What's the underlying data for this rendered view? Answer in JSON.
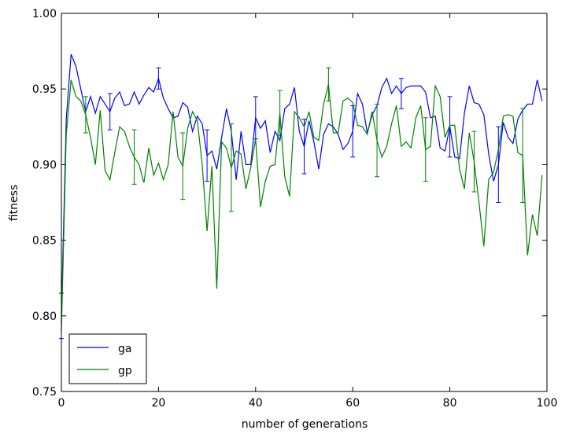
{
  "chart_data": {
    "type": "line",
    "xlabel": "number of generations",
    "ylabel": "fitness",
    "x": [
      0,
      1,
      2,
      3,
      4,
      5,
      6,
      7,
      8,
      9,
      10,
      11,
      12,
      13,
      14,
      15,
      16,
      17,
      18,
      19,
      20,
      21,
      22,
      23,
      24,
      25,
      26,
      27,
      28,
      29,
      30,
      31,
      32,
      33,
      34,
      35,
      36,
      37,
      38,
      39,
      40,
      41,
      42,
      43,
      44,
      45,
      46,
      47,
      48,
      49,
      50,
      51,
      52,
      53,
      54,
      55,
      56,
      57,
      58,
      59,
      60,
      61,
      62,
      63,
      64,
      65,
      66,
      67,
      68,
      69,
      70,
      71,
      72,
      73,
      74,
      75,
      76,
      77,
      78,
      79,
      80,
      81,
      82,
      83,
      84,
      85,
      86,
      87,
      88,
      89,
      90,
      91,
      92,
      93,
      94,
      95,
      96,
      97,
      98,
      99
    ],
    "xlim": [
      0,
      100
    ],
    "xticks": [
      0,
      20,
      40,
      60,
      80,
      100
    ],
    "ylim": [
      0.75,
      1.0
    ],
    "yticks": [
      0.75,
      {
        "value": 0.8,
        "label": "0.80"
      },
      0.85,
      {
        "value": 0.9,
        "label": "0.90"
      },
      0.95,
      {
        "value": 1.0,
        "label": "1.00"
      }
    ],
    "legend": "lower left",
    "series": [
      {
        "name": "ga",
        "color": "#0000ff",
        "values": [
          0.8,
          0.93,
          0.973,
          0.965,
          0.95,
          0.935,
          0.945,
          0.934,
          0.945,
          0.94,
          0.935,
          0.944,
          0.948,
          0.939,
          0.94,
          0.948,
          0.94,
          0.946,
          0.951,
          0.948,
          0.957,
          0.944,
          0.937,
          0.931,
          0.932,
          0.941,
          0.938,
          0.922,
          0.932,
          0.927,
          0.906,
          0.909,
          0.897,
          0.918,
          0.937,
          0.922,
          0.89,
          0.922,
          0.9,
          0.9,
          0.931,
          0.924,
          0.929,
          0.908,
          0.922,
          0.916,
          0.937,
          0.94,
          0.951,
          0.922,
          0.912,
          0.929,
          0.915,
          0.897,
          0.92,
          0.927,
          0.925,
          0.92,
          0.91,
          0.914,
          0.922,
          0.947,
          0.94,
          0.921,
          0.933,
          0.939,
          0.951,
          0.957,
          0.947,
          0.952,
          0.947,
          0.951,
          0.952,
          0.952,
          0.952,
          0.948,
          0.931,
          0.932,
          0.911,
          0.909,
          0.925,
          0.905,
          0.904,
          0.934,
          0.952,
          0.941,
          0.94,
          0.933,
          0.907,
          0.889,
          0.9,
          0.928,
          0.918,
          0.914,
          0.93,
          0.936,
          0.94,
          0.94,
          0.956,
          0.942
        ],
        "error_x": [
          0,
          10,
          20,
          30,
          40,
          50,
          60,
          70,
          80,
          90
        ],
        "errors": [
          0.015,
          0.012,
          0.007,
          0.017,
          0.014,
          0.018,
          0.017,
          0.01,
          0.02,
          0.025
        ]
      },
      {
        "name": "gp",
        "color": "#008000",
        "values": [
          0.79,
          0.92,
          0.956,
          0.945,
          0.942,
          0.933,
          0.918,
          0.9,
          0.936,
          0.896,
          0.89,
          0.908,
          0.925,
          0.922,
          0.912,
          0.905,
          0.9,
          0.888,
          0.911,
          0.893,
          0.901,
          0.89,
          0.9,
          0.935,
          0.905,
          0.899,
          0.924,
          0.935,
          0.929,
          0.9,
          0.856,
          0.899,
          0.818,
          0.915,
          0.911,
          0.898,
          0.909,
          0.907,
          0.884,
          0.898,
          0.917,
          0.872,
          0.889,
          0.899,
          0.9,
          0.934,
          0.892,
          0.879,
          0.935,
          0.931,
          0.925,
          0.935,
          0.918,
          0.916,
          0.94,
          0.953,
          0.921,
          0.921,
          0.942,
          0.944,
          0.941,
          0.926,
          0.925,
          0.92,
          0.935,
          0.916,
          0.905,
          0.912,
          0.927,
          0.939,
          0.912,
          0.915,
          0.911,
          0.931,
          0.939,
          0.91,
          0.912,
          0.952,
          0.945,
          0.918,
          0.926,
          0.926,
          0.897,
          0.884,
          0.921,
          0.902,
          0.875,
          0.846,
          0.89,
          0.895,
          0.91,
          0.932,
          0.933,
          0.932,
          0.908,
          0.906,
          0.84,
          0.867,
          0.853,
          0.893
        ],
        "error_x": [
          5,
          15,
          25,
          35,
          45,
          55,
          65,
          75,
          85,
          95
        ],
        "errors": [
          0.012,
          0.018,
          0.022,
          0.029,
          0.015,
          0.011,
          0.024,
          0.021,
          0.02,
          0.031
        ]
      }
    ]
  }
}
